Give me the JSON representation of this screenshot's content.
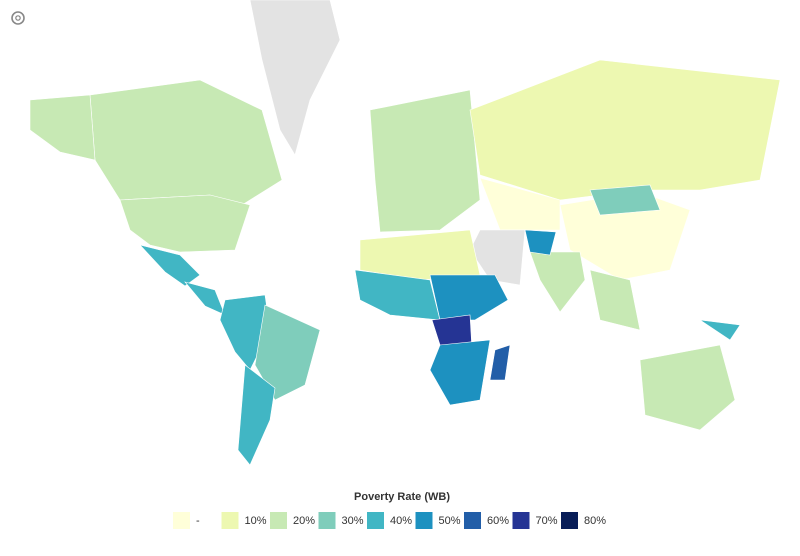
{
  "map": {
    "regions": [
      {
        "value": null
      },
      {
        "value": 20
      },
      {
        "value": 20
      },
      {
        "value": 20
      },
      {
        "value": 40
      },
      {
        "value": 40
      },
      {
        "value": 40
      },
      {
        "value": 30
      },
      {
        "value": 40
      },
      {
        "value": 20
      },
      {
        "value": 10
      },
      {
        "value": 0
      },
      {
        "value": 0
      },
      {
        "value": 30
      },
      {
        "value": null
      },
      {
        "value": 20
      },
      {
        "value": 50
      },
      {
        "value": 20
      },
      {
        "value": 10
      },
      {
        "value": 40
      },
      {
        "value": 50
      },
      {
        "value": 70
      },
      {
        "value": 50
      },
      {
        "value": 60
      },
      {
        "value": 20
      },
      {
        "value": 40
      }
    ]
  },
  "legend": {
    "title": "Poverty Rate (WB)",
    "no_data_color": "#e3e3e3",
    "items": [
      {
        "value": 0,
        "label": "-",
        "color": "#ffffd9"
      },
      {
        "value": 10,
        "label": "10%",
        "color": "#edf8b1"
      },
      {
        "value": 20,
        "label": "20%",
        "color": "#c7e9b4"
      },
      {
        "value": 30,
        "label": "30%",
        "color": "#7fcdbb"
      },
      {
        "value": 40,
        "label": "40%",
        "color": "#41b6c4"
      },
      {
        "value": 50,
        "label": "50%",
        "color": "#1d91c0"
      },
      {
        "value": 60,
        "label": "60%",
        "color": "#225ea8"
      },
      {
        "value": 70,
        "label": "70%",
        "color": "#253494"
      },
      {
        "value": 80,
        "label": "80%",
        "color": "#081d58"
      }
    ]
  }
}
